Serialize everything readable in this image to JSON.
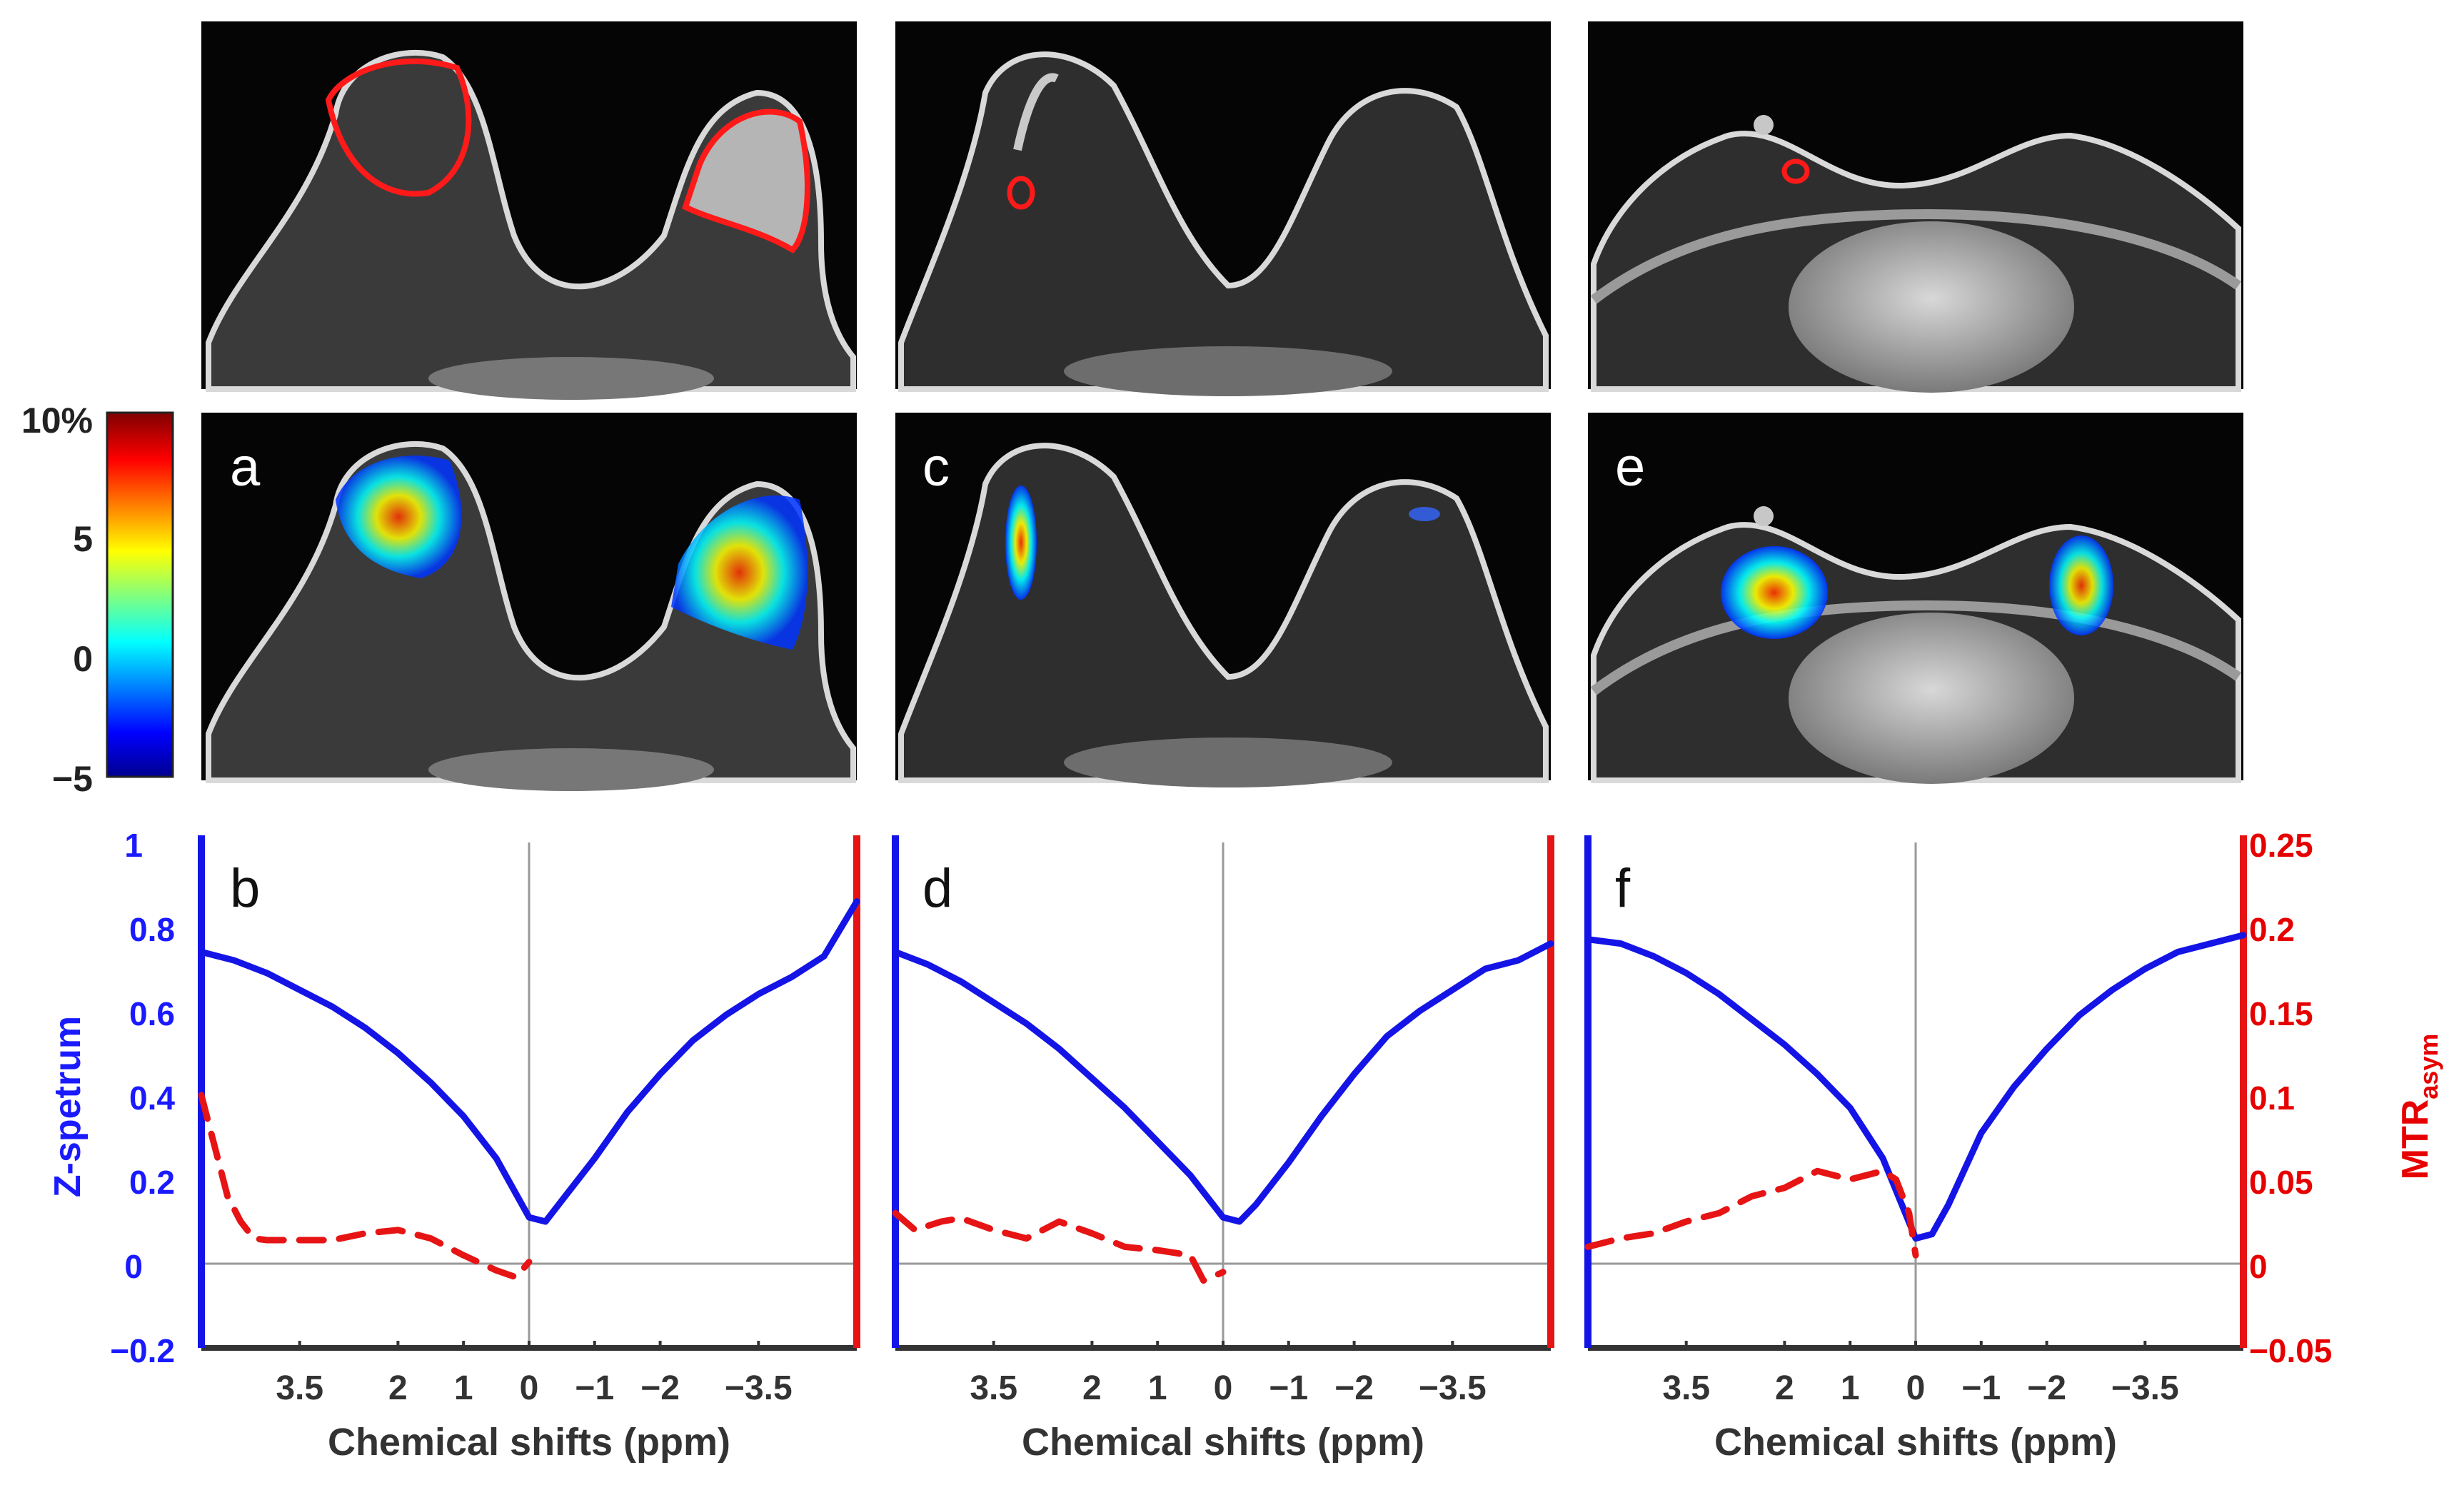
{
  "colorbar": {
    "labels": [
      "10%",
      "5",
      "0",
      "−5"
    ],
    "range": [
      -5,
      10
    ],
    "colors": [
      "#00008f",
      "#0000ff",
      "#00ffff",
      "#ffff00",
      "#ff0000",
      "#800000"
    ]
  },
  "panel_letters": [
    "a",
    "b",
    "c",
    "d",
    "e",
    "f"
  ],
  "colors": {
    "z_spectrum": "#1414e6",
    "mtr_asym": "#e61414",
    "text_blue": "#1a1aff",
    "text_red": "#e60000"
  },
  "axes": {
    "xlabel": "Chemical shifts (ppm)",
    "ylabel_left": "Z-spetrum",
    "ylabel_right_main": "MTR",
    "ylabel_right_sub": "asym",
    "left_ticks": [
      "1",
      "0.8",
      "0.6",
      "0.4",
      "0.2",
      "0",
      "−0.2"
    ],
    "right_ticks": [
      "0.25",
      "0.2",
      "0.15",
      "0.1",
      "0.05",
      "0",
      "−0.05"
    ],
    "x_ticks": [
      "3.5",
      "2",
      "1",
      "0",
      "−1",
      "−2",
      "−3.5"
    ]
  },
  "chart_data": [
    {
      "type": "line",
      "panel": "b",
      "xlabel": "Chemical shifts (ppm)",
      "ylabel": "Z-spetrum",
      "y2label": "MTRasym",
      "xlim": [
        5,
        -5
      ],
      "ylim": [
        -0.2,
        1
      ],
      "y2lim": [
        -0.05,
        0.25
      ],
      "series": [
        {
          "axis": "left",
          "style": "solid",
          "x": [
            5,
            4.5,
            4,
            3.5,
            3,
            2.5,
            2,
            1.5,
            1,
            0.5,
            0,
            -0.25,
            -0.5,
            -1,
            -1.5,
            -2,
            -2.5,
            -3,
            -3.5,
            -4,
            -4.5,
            -5
          ],
          "y": [
            0.74,
            0.72,
            0.69,
            0.65,
            0.61,
            0.56,
            0.5,
            0.43,
            0.35,
            0.25,
            0.11,
            0.1,
            0.15,
            0.25,
            0.36,
            0.45,
            0.53,
            0.59,
            0.64,
            0.68,
            0.73,
            0.86
          ]
        },
        {
          "axis": "right",
          "style": "dashed",
          "x": [
            5,
            4.8,
            4.6,
            4.4,
            4.2,
            4,
            3.5,
            3,
            2.5,
            2,
            1.5,
            1,
            0.5,
            0.2,
            0
          ],
          "y": [
            0.1,
            0.07,
            0.04,
            0.025,
            0.015,
            0.014,
            0.014,
            0.014,
            0.018,
            0.02,
            0.015,
            0.005,
            -0.004,
            -0.008,
            0.001
          ]
        }
      ]
    },
    {
      "type": "line",
      "panel": "d",
      "xlabel": "Chemical shifts (ppm)",
      "xlim": [
        5,
        -5
      ],
      "ylim": [
        -0.2,
        1
      ],
      "y2lim": [
        -0.05,
        0.25
      ],
      "series": [
        {
          "axis": "left",
          "style": "solid",
          "x": [
            5,
            4.5,
            4,
            3.5,
            3,
            2.5,
            2,
            1.5,
            1,
            0.5,
            0,
            -0.25,
            -0.5,
            -1,
            -1.5,
            -2,
            -2.5,
            -3,
            -3.5,
            -4,
            -4.5,
            -5
          ],
          "y": [
            0.74,
            0.71,
            0.67,
            0.62,
            0.57,
            0.51,
            0.44,
            0.37,
            0.29,
            0.21,
            0.11,
            0.1,
            0.14,
            0.24,
            0.35,
            0.45,
            0.54,
            0.6,
            0.65,
            0.7,
            0.72,
            0.76
          ]
        },
        {
          "axis": "right",
          "style": "dashed",
          "x": [
            5,
            4.7,
            4.3,
            4,
            3.5,
            3,
            2.5,
            2,
            1.5,
            1,
            0.5,
            0.3,
            0
          ],
          "y": [
            0.03,
            0.02,
            0.025,
            0.027,
            0.02,
            0.015,
            0.025,
            0.018,
            0.01,
            0.008,
            0.005,
            -0.01,
            -0.005
          ]
        }
      ]
    },
    {
      "type": "line",
      "panel": "f",
      "xlabel": "Chemical shifts (ppm)",
      "ylabel": "",
      "y2label": "MTRasym",
      "xlim": [
        5,
        -5
      ],
      "ylim": [
        -0.2,
        1
      ],
      "y2lim": [
        -0.05,
        0.25
      ],
      "series": [
        {
          "axis": "left",
          "style": "solid",
          "x": [
            5,
            4.5,
            4,
            3.5,
            3,
            2.5,
            2,
            1.5,
            1,
            0.5,
            0,
            -0.25,
            -0.5,
            -1,
            -1.5,
            -2,
            -2.5,
            -3,
            -3.5,
            -4,
            -4.5,
            -5
          ],
          "y": [
            0.77,
            0.76,
            0.73,
            0.69,
            0.64,
            0.58,
            0.52,
            0.45,
            0.37,
            0.25,
            0.06,
            0.07,
            0.14,
            0.31,
            0.42,
            0.51,
            0.59,
            0.65,
            0.7,
            0.74,
            0.76,
            0.78
          ]
        },
        {
          "axis": "right",
          "style": "dashed",
          "x": [
            5,
            4.5,
            4,
            3.5,
            3,
            2.5,
            2,
            1.5,
            1,
            0.5,
            0.3,
            0.1,
            0
          ],
          "y": [
            0.01,
            0.015,
            0.018,
            0.025,
            0.03,
            0.04,
            0.045,
            0.055,
            0.05,
            0.055,
            0.05,
            0.03,
            0.005
          ]
        }
      ]
    }
  ]
}
